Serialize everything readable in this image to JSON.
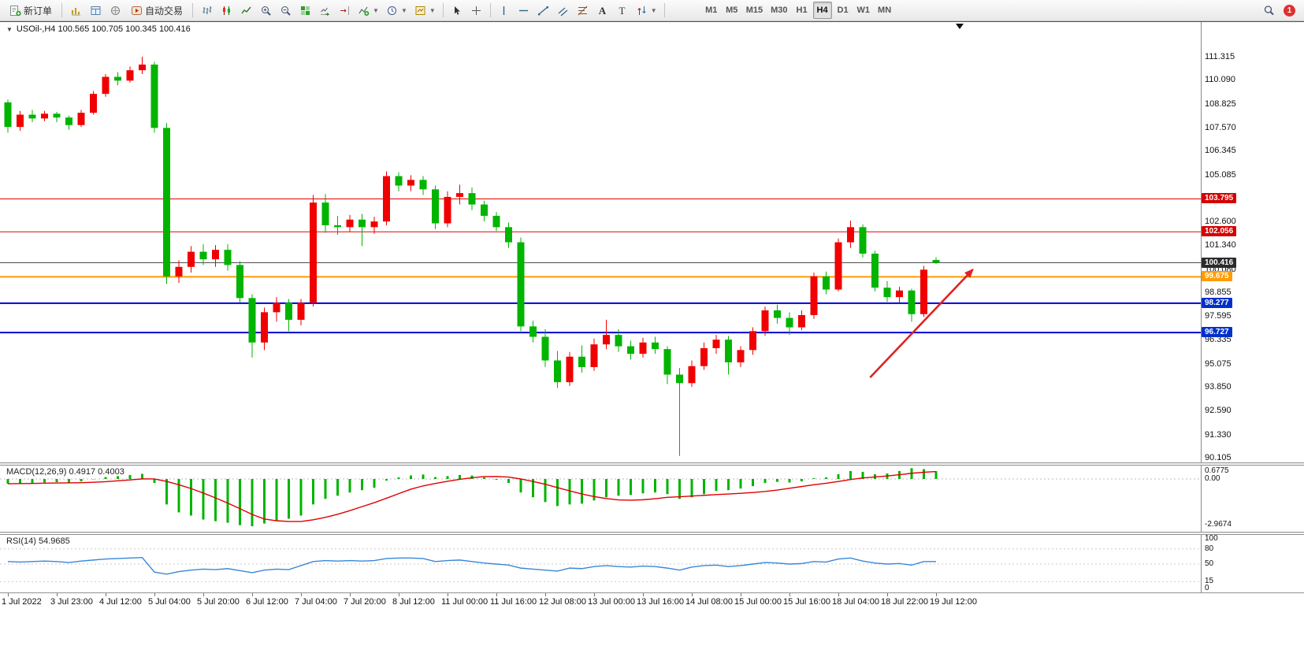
{
  "toolbar": {
    "new_order_label": "新订单",
    "autotrading_label": "自动交易",
    "timeframes": [
      "M1",
      "M5",
      "M15",
      "M30",
      "H1",
      "H4",
      "D1",
      "W1",
      "MN"
    ],
    "active_timeframe": "H4",
    "notification_count": "1"
  },
  "chart": {
    "title": "USOil-,H4 100.565 100.705 100.345 100.416",
    "axis_labels": [
      "111.315",
      "110.090",
      "108.825",
      "107.570",
      "106.345",
      "105.085",
      "102.600",
      "101.340",
      "100.080",
      "98.855",
      "97.595",
      "96.335",
      "95.075",
      "93.850",
      "92.590",
      "91.330",
      "90.105"
    ],
    "tags": [
      {
        "text": "103.795",
        "price": 103.795,
        "bg": "#d40000"
      },
      {
        "text": "102.056",
        "price": 102.056,
        "bg": "#d40000"
      },
      {
        "text": "100.416",
        "price": 100.416,
        "bg": "#2b2b2b"
      },
      {
        "text": "99.675",
        "price": 99.675,
        "bg": "#ff9c00"
      },
      {
        "text": "98.277",
        "price": 98.277,
        "bg": "#0030c8"
      },
      {
        "text": "96.727",
        "price": 96.727,
        "bg": "#0030c8"
      }
    ],
    "hlines": [
      {
        "price": 103.795,
        "color": "#e00000",
        "width": 1
      },
      {
        "price": 102.056,
        "color": "#e00000",
        "width": 1
      },
      {
        "price": 100.416,
        "color": "#4d4d4d",
        "width": 1
      },
      {
        "price": 99.675,
        "color": "#ff9c00",
        "width": 2
      },
      {
        "price": 98.277,
        "color": "#0000d8",
        "width": 2
      },
      {
        "price": 96.727,
        "color": "#0000d8",
        "width": 2
      }
    ],
    "arrow": {
      "from_bar": 70.6,
      "from_price": 94.35,
      "to_bar": 79.0,
      "to_price": 100.05,
      "color": "#e02222"
    }
  },
  "chart_data": {
    "type": "candlestick",
    "symbol": "USOil",
    "period": "H4",
    "ohlc_current": {
      "open": 100.565,
      "high": 100.705,
      "low": 100.345,
      "close": 100.416
    },
    "up_color": "#f00000",
    "down_color": "#00b400",
    "price_range": {
      "max": 111.315,
      "min": 90.105
    },
    "candles": [
      [
        108.9,
        109.05,
        107.3,
        107.6
      ],
      [
        107.6,
        108.45,
        107.4,
        108.25
      ],
      [
        108.25,
        108.5,
        107.85,
        108.05
      ],
      [
        108.05,
        108.45,
        107.9,
        108.3
      ],
      [
        108.3,
        108.4,
        107.85,
        108.1
      ],
      [
        108.1,
        108.2,
        107.45,
        107.7
      ],
      [
        107.7,
        108.5,
        107.6,
        108.35
      ],
      [
        108.35,
        109.5,
        108.25,
        109.35
      ],
      [
        109.35,
        110.4,
        109.2,
        110.25
      ],
      [
        110.25,
        110.5,
        109.8,
        110.05
      ],
      [
        110.05,
        110.8,
        109.95,
        110.6
      ],
      [
        110.6,
        111.32,
        110.4,
        110.9
      ],
      [
        110.9,
        111.05,
        107.3,
        107.55
      ],
      [
        107.55,
        107.8,
        99.3,
        99.7
      ],
      [
        99.7,
        100.55,
        99.35,
        100.2
      ],
      [
        100.2,
        101.3,
        99.9,
        101.0
      ],
      [
        101.0,
        101.4,
        100.3,
        100.6
      ],
      [
        100.6,
        101.35,
        100.2,
        101.1
      ],
      [
        101.1,
        101.4,
        100.0,
        100.3
      ],
      [
        100.3,
        100.5,
        98.3,
        98.55
      ],
      [
        98.55,
        98.75,
        95.4,
        96.2
      ],
      [
        96.2,
        98.05,
        95.8,
        97.8
      ],
      [
        97.8,
        98.6,
        97.3,
        98.3
      ],
      [
        98.3,
        98.5,
        96.8,
        97.4
      ],
      [
        97.4,
        98.5,
        97.1,
        98.3
      ],
      [
        98.3,
        104.0,
        98.1,
        103.6
      ],
      [
        103.6,
        104.05,
        102.0,
        102.4
      ],
      [
        102.4,
        102.9,
        101.9,
        102.3
      ],
      [
        102.3,
        102.95,
        102.05,
        102.7
      ],
      [
        102.7,
        103.0,
        101.3,
        102.3
      ],
      [
        102.3,
        102.85,
        101.95,
        102.6
      ],
      [
        102.6,
        105.25,
        102.4,
        105.0
      ],
      [
        105.0,
        105.2,
        104.2,
        104.5
      ],
      [
        104.5,
        105.05,
        104.2,
        104.8
      ],
      [
        104.8,
        105.0,
        104.0,
        104.3
      ],
      [
        104.3,
        104.5,
        102.2,
        102.5
      ],
      [
        102.5,
        104.2,
        102.3,
        103.9
      ],
      [
        103.9,
        104.55,
        103.5,
        104.1
      ],
      [
        104.1,
        104.4,
        103.2,
        103.5
      ],
      [
        103.5,
        103.7,
        102.6,
        102.9
      ],
      [
        102.9,
        103.1,
        102.1,
        102.3
      ],
      [
        102.3,
        102.55,
        101.2,
        101.5
      ],
      [
        101.5,
        101.75,
        96.8,
        97.05
      ],
      [
        97.05,
        97.35,
        96.2,
        96.5
      ],
      [
        96.5,
        96.9,
        94.9,
        95.25
      ],
      [
        95.25,
        95.75,
        93.8,
        94.1
      ],
      [
        94.1,
        95.7,
        93.9,
        95.45
      ],
      [
        95.45,
        96.05,
        94.6,
        94.9
      ],
      [
        94.9,
        96.4,
        94.7,
        96.1
      ],
      [
        96.1,
        97.4,
        95.85,
        96.6
      ],
      [
        96.6,
        96.9,
        95.7,
        96.0
      ],
      [
        96.0,
        96.3,
        95.3,
        95.6
      ],
      [
        95.6,
        96.45,
        95.4,
        96.2
      ],
      [
        96.2,
        96.5,
        95.6,
        95.85
      ],
      [
        95.85,
        96.0,
        94.0,
        94.5
      ],
      [
        94.5,
        94.85,
        90.2,
        94.05
      ],
      [
        94.05,
        95.25,
        93.85,
        94.95
      ],
      [
        94.95,
        96.2,
        94.75,
        95.9
      ],
      [
        95.9,
        96.6,
        95.6,
        96.35
      ],
      [
        96.35,
        96.55,
        94.5,
        95.15
      ],
      [
        95.15,
        96.0,
        94.9,
        95.8
      ],
      [
        95.8,
        97.0,
        95.55,
        96.8
      ],
      [
        96.8,
        98.1,
        96.55,
        97.9
      ],
      [
        97.9,
        98.2,
        97.2,
        97.5
      ],
      [
        97.5,
        97.8,
        96.6,
        97.0
      ],
      [
        97.0,
        97.9,
        96.85,
        97.65
      ],
      [
        97.65,
        99.9,
        97.45,
        99.7
      ],
      [
        99.7,
        99.95,
        98.75,
        99.0
      ],
      [
        99.0,
        101.7,
        98.9,
        101.5
      ],
      [
        101.5,
        102.65,
        101.2,
        102.3
      ],
      [
        102.3,
        102.45,
        100.7,
        100.9
      ],
      [
        100.9,
        101.05,
        98.9,
        99.1
      ],
      [
        99.1,
        99.45,
        98.35,
        98.6
      ],
      [
        98.6,
        99.15,
        98.3,
        98.95
      ],
      [
        98.95,
        99.05,
        97.3,
        97.7
      ],
      [
        97.7,
        100.25,
        97.55,
        100.05
      ],
      [
        100.565,
        100.705,
        100.345,
        100.416
      ]
    ],
    "time_labels": [
      "1 Jul 2022",
      "3 Jul 23:00",
      "4 Jul 12:00",
      "5 Jul 04:00",
      "5 Jul 20:00",
      "6 Jul 12:00",
      "7 Jul 04:00",
      "7 Jul 20:00",
      "8 Jul 12:00",
      "11 Jul 00:00",
      "11 Jul 16:00",
      "12 Jul 08:00",
      "13 Jul 00:00",
      "13 Jul 16:00",
      "14 Jul 08:00",
      "15 Jul 00:00",
      "15 Jul 16:00",
      "18 Jul 04:00",
      "18 Jul 22:00",
      "19 Jul 12:00"
    ],
    "macd": {
      "label": "MACD(12,26,9) 0.4917 0.4003",
      "scale_max": "0.6775",
      "scale_zero": "0.00",
      "scale_min": "-2.9674",
      "bar_color": "#00b400",
      "line_color": "#e00000",
      "histogram": [
        -0.3,
        -0.28,
        -0.26,
        -0.22,
        -0.2,
        -0.22,
        -0.15,
        -0.02,
        0.12,
        0.18,
        0.25,
        0.32,
        -0.25,
        -1.6,
        -2.1,
        -2.3,
        -2.55,
        -2.65,
        -2.75,
        -2.9,
        -2.9674,
        -2.8,
        -2.6,
        -2.5,
        -2.3,
        -1.6,
        -1.25,
        -1.05,
        -0.85,
        -0.7,
        -0.55,
        -0.1,
        0.1,
        0.22,
        0.28,
        0.12,
        0.18,
        0.25,
        0.22,
        0.1,
        -0.05,
        -0.25,
        -0.85,
        -1.15,
        -1.45,
        -1.7,
        -1.6,
        -1.55,
        -1.35,
        -1.15,
        -1.05,
        -1.0,
        -0.9,
        -0.85,
        -0.95,
        -1.25,
        -1.15,
        -0.95,
        -0.75,
        -0.7,
        -0.6,
        -0.45,
        -0.25,
        -0.18,
        -0.22,
        -0.15,
        0.05,
        0.1,
        0.3,
        0.5,
        0.45,
        0.3,
        0.35,
        0.5,
        0.6775,
        0.62,
        0.4917
      ]
    },
    "rsi": {
      "label": "RSI(14) 54.9685",
      "levels": [
        "100",
        "80",
        "50",
        "15",
        "0"
      ],
      "line_color": "#3a87d8",
      "values": [
        55,
        54,
        55,
        56,
        55,
        53,
        56,
        58,
        60,
        61,
        62,
        63,
        34,
        30,
        35,
        38,
        40,
        39,
        41,
        37,
        33,
        38,
        40,
        39,
        47,
        55,
        57,
        56,
        57,
        56,
        57,
        61,
        62,
        62,
        61,
        55,
        57,
        58,
        55,
        52,
        50,
        48,
        42,
        40,
        38,
        36,
        42,
        41,
        45,
        47,
        45,
        44,
        46,
        45,
        42,
        38,
        44,
        47,
        48,
        45,
        47,
        50,
        53,
        52,
        50,
        51,
        55,
        54,
        60,
        62,
        56,
        52,
        50,
        51,
        48,
        55,
        55
      ]
    }
  }
}
